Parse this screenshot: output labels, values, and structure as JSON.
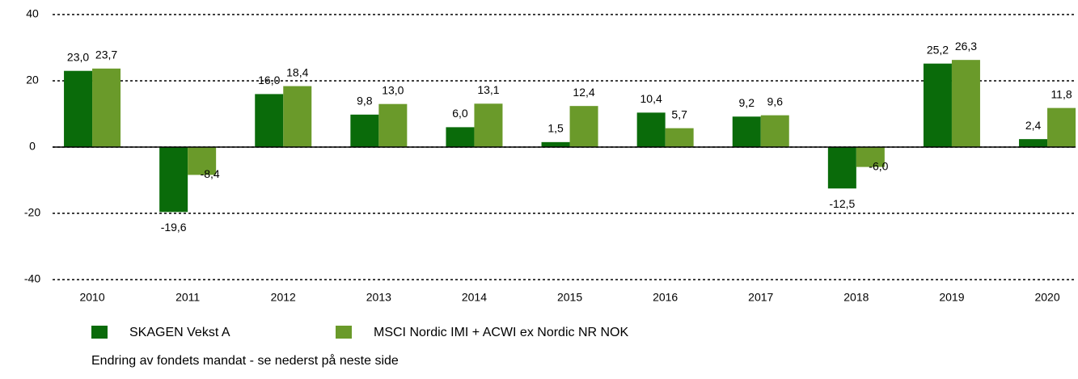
{
  "chart_data": {
    "type": "bar",
    "categories": [
      "2010",
      "2011",
      "2012",
      "2013",
      "2014",
      "2015",
      "2016",
      "2017",
      "2018",
      "2019",
      "2020"
    ],
    "series": [
      {
        "name": "SKAGEN Vekst A",
        "color": "#0a6b0a",
        "values": [
          23.0,
          -19.6,
          16.0,
          9.8,
          6.0,
          1.5,
          10.4,
          9.2,
          -12.5,
          25.2,
          2.4
        ],
        "value_labels": [
          "23,0",
          "-19,6",
          "16,0",
          "9,8",
          "6,0",
          "1,5",
          "10,4",
          "9,2",
          "-12,5",
          "25,2",
          "2,4"
        ]
      },
      {
        "name": "MSCI Nordic IMI + ACWI ex Nordic NR NOK",
        "color": "#6a9a2a",
        "values": [
          23.7,
          -8.4,
          18.4,
          13.0,
          13.1,
          12.4,
          5.7,
          9.6,
          -6.0,
          26.3,
          11.8
        ],
        "value_labels": [
          "23,7",
          "-8,4",
          "18,4",
          "13,0",
          "13,1",
          "12,4",
          "5,7",
          "9,6",
          "-6,0",
          "26,3",
          "11,8"
        ]
      }
    ],
    "ylim": [
      -40,
      40
    ],
    "yticks": [
      40,
      20,
      0,
      -20,
      -40
    ],
    "grid": true,
    "note": "Endring av fondets mandat - se nederst på neste side"
  }
}
